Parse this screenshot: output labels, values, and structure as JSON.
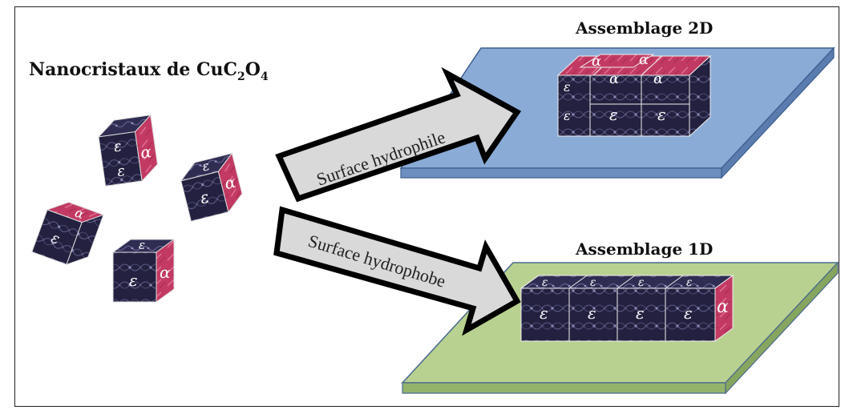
{
  "title": {
    "prefix": "Nanocristaux de CuC",
    "sub1": "2",
    "mid": "O",
    "sub2": "4"
  },
  "arrows": {
    "top_label": "Surface hydrophile",
    "bottom_label": "Surface hydrophobe"
  },
  "plates": {
    "top_label": "Assemblage 2D",
    "bottom_label": "Assemblage 1D"
  },
  "faces": {
    "epsilon": "ε",
    "alpha": "α"
  },
  "colors": {
    "cube_dark": "#23213f",
    "cube_pink": "#c23a63",
    "plate_blue": "#8aabd6",
    "plate_green": "#b9d190",
    "arrow_fill": "#d9d9d9"
  }
}
